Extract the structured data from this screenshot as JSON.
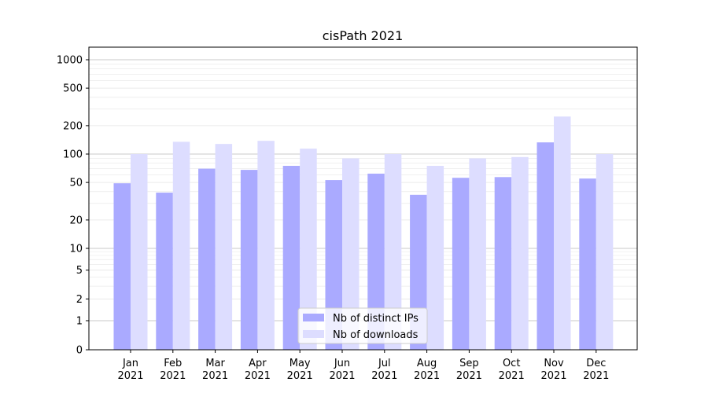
{
  "chart_data": {
    "type": "bar",
    "title": "cisPath 2021",
    "xlabel": "",
    "ylabel": "",
    "yscale": "symlog",
    "ylim": [
      0,
      1300
    ],
    "yticks": [
      0,
      1,
      2,
      5,
      10,
      20,
      50,
      100,
      200,
      500,
      1000
    ],
    "grid": "horizontal",
    "legend_position": "bottom-center",
    "categories": [
      [
        "Jan",
        "2021"
      ],
      [
        "Feb",
        "2021"
      ],
      [
        "Mar",
        "2021"
      ],
      [
        "Apr",
        "2021"
      ],
      [
        "May",
        "2021"
      ],
      [
        "Jun",
        "2021"
      ],
      [
        "Jul",
        "2021"
      ],
      [
        "Aug",
        "2021"
      ],
      [
        "Sep",
        "2021"
      ],
      [
        "Oct",
        "2021"
      ],
      [
        "Nov",
        "2021"
      ],
      [
        "Dec",
        "2021"
      ]
    ],
    "series": [
      {
        "name": "Nb of distinct IPs",
        "color": "#aaaaff",
        "values": [
          49,
          39,
          70,
          68,
          75,
          53,
          62,
          37,
          56,
          57,
          133,
          55
        ]
      },
      {
        "name": "Nb of downloads",
        "color": "#ddddff",
        "values": [
          100,
          135,
          128,
          138,
          114,
          90,
          100,
          75,
          90,
          93,
          250,
          100
        ]
      }
    ]
  }
}
